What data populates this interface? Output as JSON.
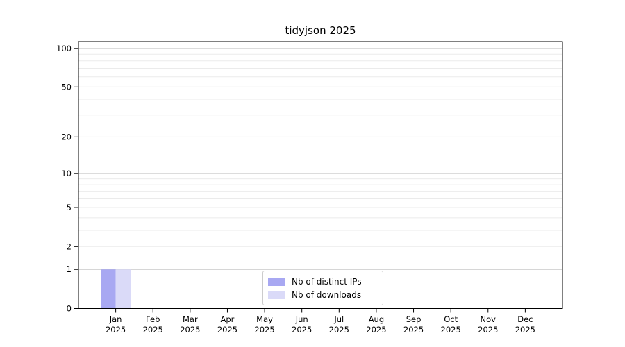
{
  "title": "tidyjson 2025",
  "chart_data": {
    "type": "bar",
    "title": "tidyjson 2025",
    "categories": [
      "Jan",
      "Feb",
      "Mar",
      "Apr",
      "May",
      "Jun",
      "Jul",
      "Aug",
      "Sep",
      "Oct",
      "Nov",
      "Dec"
    ],
    "category_year": "2025",
    "series": [
      {
        "name": "Nb of distinct IPs",
        "color": "#a8a8f2",
        "values": [
          1,
          0,
          0,
          0,
          0,
          0,
          0,
          0,
          0,
          0,
          0,
          0
        ]
      },
      {
        "name": "Nb of downloads",
        "color": "#dadaf8",
        "values": [
          1,
          0,
          0,
          0,
          0,
          0,
          0,
          0,
          0,
          0,
          0,
          0
        ]
      }
    ],
    "xlabel": "",
    "ylabel": "",
    "yscale": "log10(1+x)",
    "ylim": [
      0,
      113
    ],
    "ytick_values": [
      0,
      1,
      2,
      5,
      10,
      20,
      50,
      100
    ],
    "yminor_grid_values": [
      2,
      3,
      4,
      5,
      6,
      7,
      8,
      9,
      20,
      30,
      40,
      50,
      60,
      70,
      80,
      90
    ],
    "ymajor_grid_values": [
      1,
      10,
      100
    ],
    "grid": "horizontal",
    "legend_position": "bottom-center"
  },
  "colors": {
    "distinct_ips_bar": "#a8a8f2",
    "downloads_bar": "#dadaf8",
    "major_grid": "#c8c8c8",
    "minor_grid": "#ebebeb",
    "spine": "#000000"
  }
}
